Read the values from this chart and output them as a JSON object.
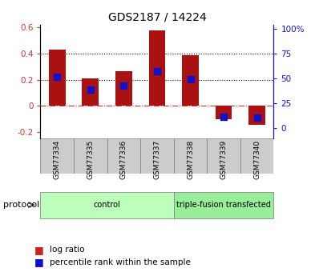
{
  "title": "GDS2187 / 14224",
  "samples": [
    "GSM77334",
    "GSM77335",
    "GSM77336",
    "GSM77337",
    "GSM77338",
    "GSM77339",
    "GSM77340"
  ],
  "log_ratio": [
    0.43,
    0.21,
    0.265,
    0.575,
    0.39,
    -0.1,
    -0.145
  ],
  "percentile_rank": [
    52,
    38.5,
    42.5,
    57.5,
    49,
    11.5,
    10.5
  ],
  "ylim_left": [
    -0.25,
    0.62
  ],
  "ylim_right": [
    -10.4,
    104
  ],
  "bar_color": "#AA1111",
  "dot_color": "#1111CC",
  "protocol_groups": [
    {
      "label": "control",
      "start": 0,
      "end": 4,
      "color": "#BBFFBB"
    },
    {
      "label": "triple-fusion transfected",
      "start": 4,
      "end": 7,
      "color": "#99EE99"
    }
  ],
  "protocol_label": "protocol",
  "legend_items": [
    {
      "label": "log ratio",
      "color": "#CC2222"
    },
    {
      "label": "percentile rank within the sample",
      "color": "#1111CC"
    }
  ],
  "yticks_left": [
    -0.2,
    0.0,
    0.2,
    0.4,
    0.6
  ],
  "yticks_left_labels": [
    "-0.2",
    "0",
    "0.2",
    "0.4",
    "0.6"
  ],
  "yticks_right": [
    0,
    25,
    50,
    75,
    100
  ],
  "yticks_right_labels": [
    "0",
    "25",
    "50",
    "75",
    "100%"
  ],
  "hlines": [
    0.0,
    0.2,
    0.4
  ],
  "hline_styles": [
    "dashdot",
    "dotted",
    "dotted"
  ],
  "hline_colors": [
    "#CC3333",
    "#000000",
    "#000000"
  ],
  "sample_box_color": "#CCCCCC",
  "sample_box_edge": "#888888"
}
